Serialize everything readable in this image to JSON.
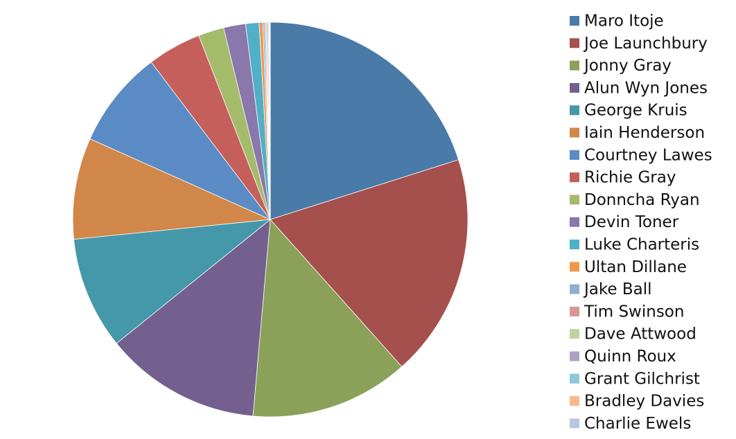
{
  "chart_data": {
    "type": "pie",
    "categories": [
      "Maro Itoje",
      "Joe Launchbury",
      "Jonny Gray",
      "Alun Wyn Jones",
      "George Kruis",
      "Iain Henderson",
      "Courtney Lawes",
      "Richie Gray",
      "Donncha Ryan",
      "Devin Toner",
      "Luke Charteris",
      "Ultan Dillane",
      "Jake Ball",
      "Tim Swinson",
      "Dave Attwood",
      "Quinn Roux",
      "Grant Gilchrist",
      "Bradley Davies",
      "Charlie Ewels"
    ],
    "values": [
      20.1,
      18.3,
      13,
      12.8,
      9.2,
      8.3,
      8,
      4.4,
      2.1,
      1.8,
      1.1,
      0.3,
      0.15,
      0.1,
      0.1,
      0.1,
      0.05,
      0.05,
      0.05
    ],
    "colors": [
      "#4a7aa8",
      "#a5504d",
      "#8ba15a",
      "#73608f",
      "#4598aa",
      "#d2874a",
      "#5b8bc4",
      "#c55f5c",
      "#a4bb6a",
      "#8a77ab",
      "#4fb0c6",
      "#f0994e",
      "#92add2",
      "#d69795",
      "#bfd49f",
      "#aea2c4",
      "#8dc9d8",
      "#f9b98b",
      "#b7c6e2"
    ],
    "legend": "right"
  }
}
